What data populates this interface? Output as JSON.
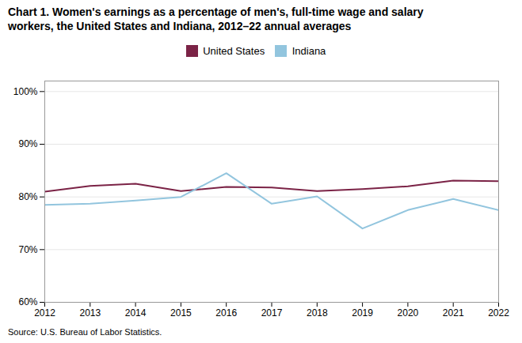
{
  "chart_data": {
    "type": "line",
    "title": "Chart 1. Women's earnings as a percentage of men's, full-time wage and salary\nworkers, the United States and Indiana, 2012–22 annual averages",
    "source": "Source:  U.S. Bureau of Labor Statistics.",
    "x": [
      2012,
      2013,
      2014,
      2015,
      2016,
      2017,
      2018,
      2019,
      2020,
      2021,
      2022
    ],
    "series": [
      {
        "name": "United States",
        "color": "#7b2346",
        "values": [
          81.0,
          82.1,
          82.5,
          81.1,
          81.9,
          81.8,
          81.1,
          81.5,
          82.0,
          83.1,
          83.0
        ]
      },
      {
        "name": "Indiana",
        "color": "#92c5de",
        "values": [
          78.5,
          78.7,
          79.3,
          80.0,
          84.5,
          78.7,
          80.1,
          74.0,
          77.5,
          79.6,
          77.5
        ]
      }
    ],
    "xlim": [
      2012,
      2022
    ],
    "xticks": [
      2012,
      2013,
      2014,
      2015,
      2016,
      2017,
      2018,
      2019,
      2020,
      2021,
      2022
    ],
    "ylim": [
      60,
      102
    ],
    "yticks": [
      {
        "value": 60,
        "label": "60%"
      },
      {
        "value": 70,
        "label": "70%"
      },
      {
        "value": 80,
        "label": "80%"
      },
      {
        "value": 90,
        "label": "90%"
      },
      {
        "value": 100,
        "label": "100%"
      }
    ],
    "grid": true,
    "legend": "top"
  }
}
